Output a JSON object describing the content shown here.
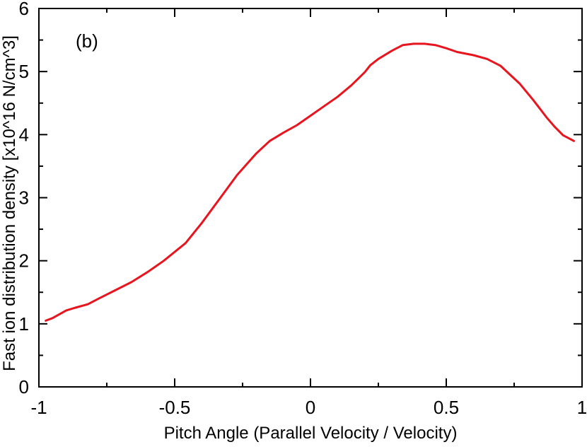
{
  "chart_data": {
    "type": "line",
    "title": "",
    "xlabel": "Pitch Angle (Parallel Velocity / Velocity)",
    "ylabel": "Fast ion distribution density [x10^16 N/cm^3]",
    "xlim": [
      -1,
      1
    ],
    "ylim": [
      0,
      6
    ],
    "x_ticks": [
      -1,
      -0.5,
      0,
      0.5,
      1
    ],
    "x_tick_labels": [
      "-1",
      "-0.5",
      "0",
      "0.5",
      "1"
    ],
    "y_ticks": [
      0,
      1,
      2,
      3,
      4,
      5,
      6
    ],
    "y_tick_labels": [
      "0",
      "1",
      "2",
      "3",
      "4",
      "5",
      "6"
    ],
    "grid": false,
    "annotation": "(b)",
    "series": [
      {
        "name": "fast ion distribution",
        "color": "#e8141e",
        "x": [
          -0.975,
          -0.95,
          -0.9,
          -0.87,
          -0.82,
          -0.78,
          -0.72,
          -0.66,
          -0.6,
          -0.54,
          -0.46,
          -0.4,
          -0.34,
          -0.27,
          -0.2,
          -0.15,
          -0.1,
          -0.05,
          0.0,
          0.05,
          0.1,
          0.15,
          0.2,
          0.22,
          0.25,
          0.3,
          0.34,
          0.38,
          0.42,
          0.46,
          0.5,
          0.54,
          0.6,
          0.65,
          0.7,
          0.77,
          0.82,
          0.87,
          0.9,
          0.93,
          0.97
        ],
        "values": [
          1.05,
          1.09,
          1.21,
          1.25,
          1.31,
          1.4,
          1.53,
          1.66,
          1.82,
          2.0,
          2.28,
          2.6,
          2.95,
          3.36,
          3.7,
          3.9,
          4.03,
          4.15,
          4.3,
          4.45,
          4.6,
          4.78,
          4.99,
          5.1,
          5.2,
          5.33,
          5.42,
          5.44,
          5.44,
          5.42,
          5.37,
          5.31,
          5.26,
          5.2,
          5.09,
          4.81,
          4.55,
          4.27,
          4.12,
          3.99,
          3.9
        ]
      }
    ]
  }
}
